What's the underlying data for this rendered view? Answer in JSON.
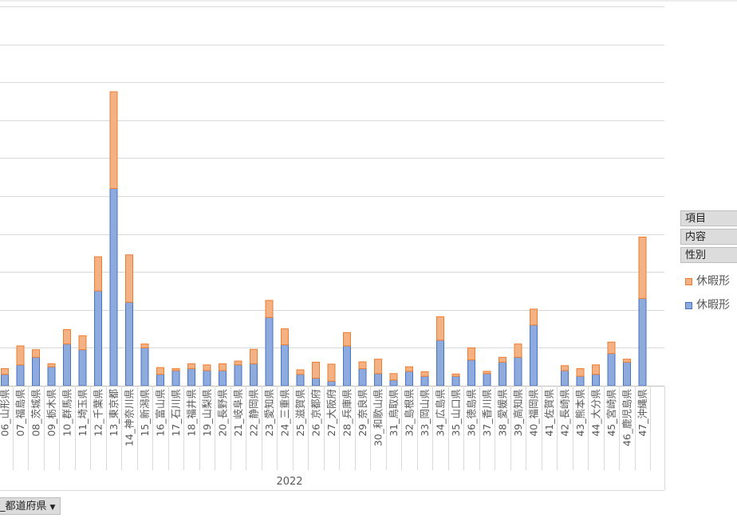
{
  "chart_data": {
    "type": "bar",
    "stacked": true,
    "title": "",
    "xlabel": "2022",
    "ylabel": "",
    "ylim": [
      0,
      10
    ],
    "grid": true,
    "categories": [
      "06_山形県",
      "07_福島県",
      "08_茨城県",
      "09_栃木県",
      "10_群馬県",
      "11_埼玉県",
      "12_千葉県",
      "13_東京都",
      "14_神奈川県",
      "15_新潟県",
      "16_富山県",
      "17_石川県",
      "18_福井県",
      "19_山梨県",
      "20_長野県",
      "21_岐阜県",
      "22_静岡県",
      "23_愛知県",
      "24_三重県",
      "25_滋賀県",
      "26_京都府",
      "27_大阪府",
      "28_兵庫県",
      "29_奈良県",
      "30_和歌山県",
      "31_鳥取県",
      "32_島根県",
      "33_岡山県",
      "34_広島県",
      "35_山口県",
      "36_徳島県",
      "37_香川県",
      "38_愛媛県",
      "39_高知県",
      "40_福岡県",
      "41_佐賀県",
      "42_長崎県",
      "43_熊本県",
      "44_大分県",
      "45_宮崎県",
      "46_鹿児島県",
      "47_沖縄県"
    ],
    "series": [
      {
        "name": "休暇形",
        "color": "#8faadc",
        "values": [
          0.3,
          0.55,
          0.75,
          0.5,
          1.1,
          0.95,
          2.5,
          5.2,
          2.2,
          1.0,
          0.3,
          0.4,
          0.45,
          0.4,
          0.4,
          0.55,
          0.58,
          1.8,
          1.08,
          0.3,
          0.2,
          0.12,
          1.05,
          0.45,
          0.32,
          0.15,
          0.38,
          0.25,
          1.2,
          0.25,
          0.68,
          0.32,
          0.62,
          0.75,
          1.6,
          0,
          0.4,
          0.25,
          0.3,
          0.85,
          0.62,
          2.3
        ]
      },
      {
        "name": "休暇形",
        "color": "#f4b183",
        "values": [
          0.15,
          0.5,
          0.2,
          0.08,
          0.38,
          0.37,
          0.9,
          2.55,
          1.25,
          0.1,
          0.18,
          0.05,
          0.13,
          0.15,
          0.18,
          0.1,
          0.38,
          0.45,
          0.42,
          0.12,
          0.42,
          0.45,
          0.35,
          0.18,
          0.38,
          0.17,
          0.12,
          0.12,
          0.62,
          0.06,
          0.32,
          0.06,
          0.13,
          0.35,
          0.42,
          0,
          0.13,
          0.2,
          0.25,
          0.3,
          0.08,
          1.62
        ]
      }
    ],
    "legend_position": "right"
  },
  "filters": [
    "項目",
    "内容",
    "性別"
  ],
  "field_button": {
    "label": "_都道府県"
  }
}
